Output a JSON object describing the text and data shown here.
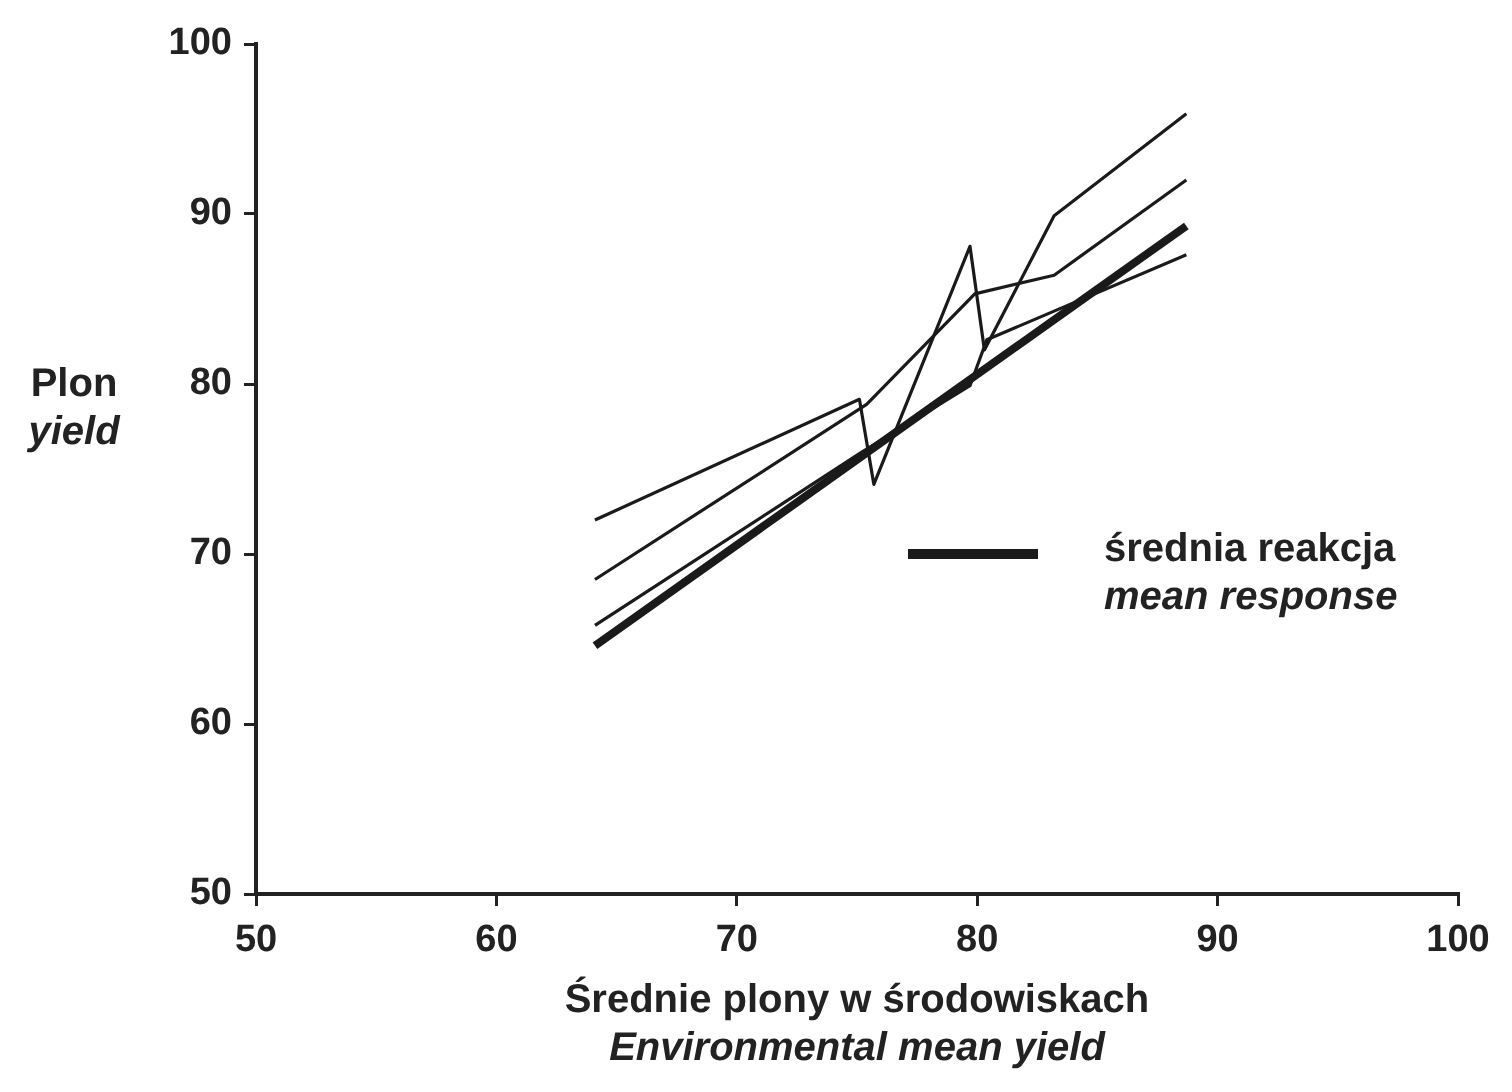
{
  "chart_data": {
    "type": "line",
    "xlabel": "Średnie plony w środowiskach\nEnvironmental mean yield",
    "ylabel": "Plon\nyield",
    "xlim": [
      50,
      100
    ],
    "xticks": [
      50,
      60,
      70,
      80,
      90,
      100
    ],
    "ylim": [
      50,
      100
    ],
    "yticks": [
      50,
      60,
      70,
      80,
      90,
      100
    ],
    "marker": "none",
    "legend": "right",
    "series": [
      {
        "color": "#1a1a1a",
        "x": [
          64.1,
          75.1,
          75.7,
          79.7,
          80.3,
          83.2,
          88.7
        ],
        "values": [
          72.0,
          79.1,
          74.1,
          88.1,
          82.0,
          89.9,
          95.9
        ]
      },
      {
        "color": "#1a1a1a",
        "x": [
          64.1,
          75.4,
          79.9,
          83.2,
          88.7
        ],
        "values": [
          68.5,
          78.8,
          85.3,
          86.4,
          92.0
        ]
      },
      {
        "color": "#1a1a1a",
        "x": [
          64.1,
          75.1,
          79.7,
          80.4,
          88.7
        ],
        "values": [
          65.8,
          75.9,
          79.9,
          82.6,
          87.6
        ]
      },
      {
        "name": "średnia reakcja\nmean response",
        "color": "#1a1a1a",
        "x": [
          64.1,
          88.7
        ],
        "values": [
          64.6,
          89.3
        ]
      }
    ]
  }
}
